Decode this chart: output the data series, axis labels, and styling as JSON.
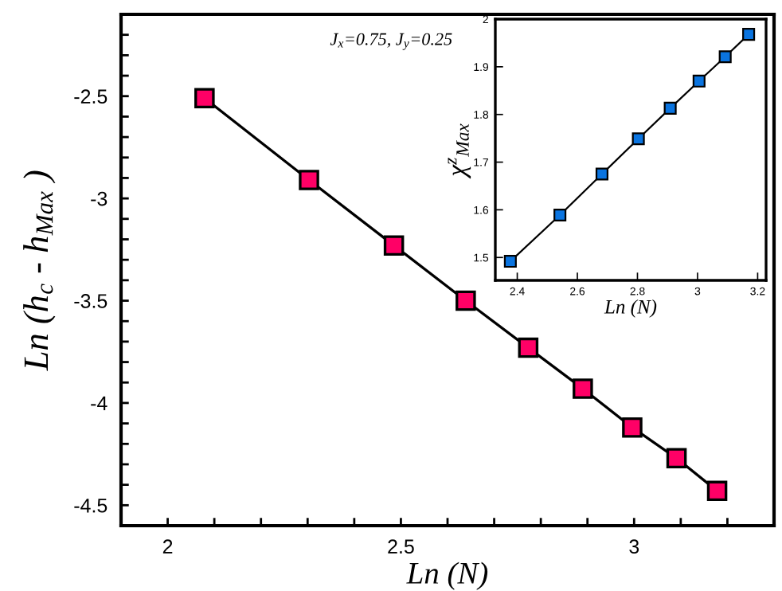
{
  "chart_data": [
    {
      "type": "line",
      "xlabel": "Ln (N)",
      "ylabel": "Ln (h$_{c}$ - h$_{Max}$ )",
      "marker": "square",
      "line_style": "solid",
      "annotations": [
        "J$_{x}$=0.75, J$_{y}$=0.25"
      ],
      "x": [
        2.079,
        2.303,
        2.485,
        2.639,
        2.773,
        2.89,
        2.996,
        3.091,
        3.178
      ],
      "series": [
        {
          "color": "#ff0066",
          "values": [
            -2.51,
            -2.91,
            -3.23,
            -3.5,
            -3.73,
            -3.93,
            -4.12,
            -4.27,
            -4.43
          ]
        }
      ],
      "xlim": [
        1.9,
        3.3
      ],
      "ylim": [
        -4.6,
        -2.1
      ],
      "xticks": [
        {
          "value": 1.9,
          "label": null
        },
        2,
        {
          "value": 2.1,
          "label": null
        },
        {
          "value": 2.2,
          "label": null
        },
        {
          "value": 2.3,
          "label": null
        },
        {
          "value": 2.4,
          "label": null
        },
        2.5,
        {
          "value": 2.6,
          "label": null
        },
        {
          "value": 2.7,
          "label": null
        },
        {
          "value": 2.8,
          "label": null
        },
        {
          "value": 2.9,
          "label": null
        },
        3,
        {
          "value": 3.1,
          "label": null
        },
        {
          "value": 3.2,
          "label": null
        }
      ],
      "yticks": [
        {
          "value": -4.6,
          "label": null
        },
        -4.5,
        {
          "value": -4.4,
          "label": null
        },
        {
          "value": -4.3,
          "label": null
        },
        {
          "value": -4.2,
          "label": null
        },
        {
          "value": -4.1,
          "label": null
        },
        -4,
        {
          "value": -3.9,
          "label": null
        },
        {
          "value": -3.8,
          "label": null
        },
        {
          "value": -3.7,
          "label": null
        },
        {
          "value": -3.6,
          "label": null
        },
        -3.5,
        {
          "value": -3.4,
          "label": null
        },
        {
          "value": -3.3,
          "label": null
        },
        {
          "value": -3.2,
          "label": null
        },
        {
          "value": -3.1,
          "label": null
        },
        -3,
        {
          "value": -2.9,
          "label": null
        },
        {
          "value": -2.8,
          "label": null
        },
        {
          "value": -2.7,
          "label": null
        },
        {
          "value": -2.6,
          "label": null
        },
        -2.5,
        {
          "value": -2.4,
          "label": null
        },
        {
          "value": -2.3,
          "label": null
        },
        {
          "value": -2.2,
          "label": null
        }
      ]
    },
    {
      "type": "line",
      "xlabel": "Ln (N)",
      "ylabel": "χ$^{z}$$_{Max}$",
      "marker": "square",
      "line_style": "solid",
      "x": [
        2.377,
        2.542,
        2.682,
        2.803,
        2.909,
        3.005,
        3.092,
        3.17
      ],
      "series": [
        {
          "color": "#0a74e0",
          "values": [
            1.492,
            1.589,
            1.675,
            1.749,
            1.813,
            1.87,
            1.921,
            1.968
          ]
        }
      ],
      "xlim": [
        2.327,
        3.228
      ],
      "ylim": [
        1.452,
        2.0
      ],
      "xticks": [
        2.4,
        2.6,
        2.8,
        3,
        3.2
      ],
      "yticks": [
        1.5,
        1.6,
        1.7,
        1.8,
        1.9,
        2
      ]
    }
  ]
}
